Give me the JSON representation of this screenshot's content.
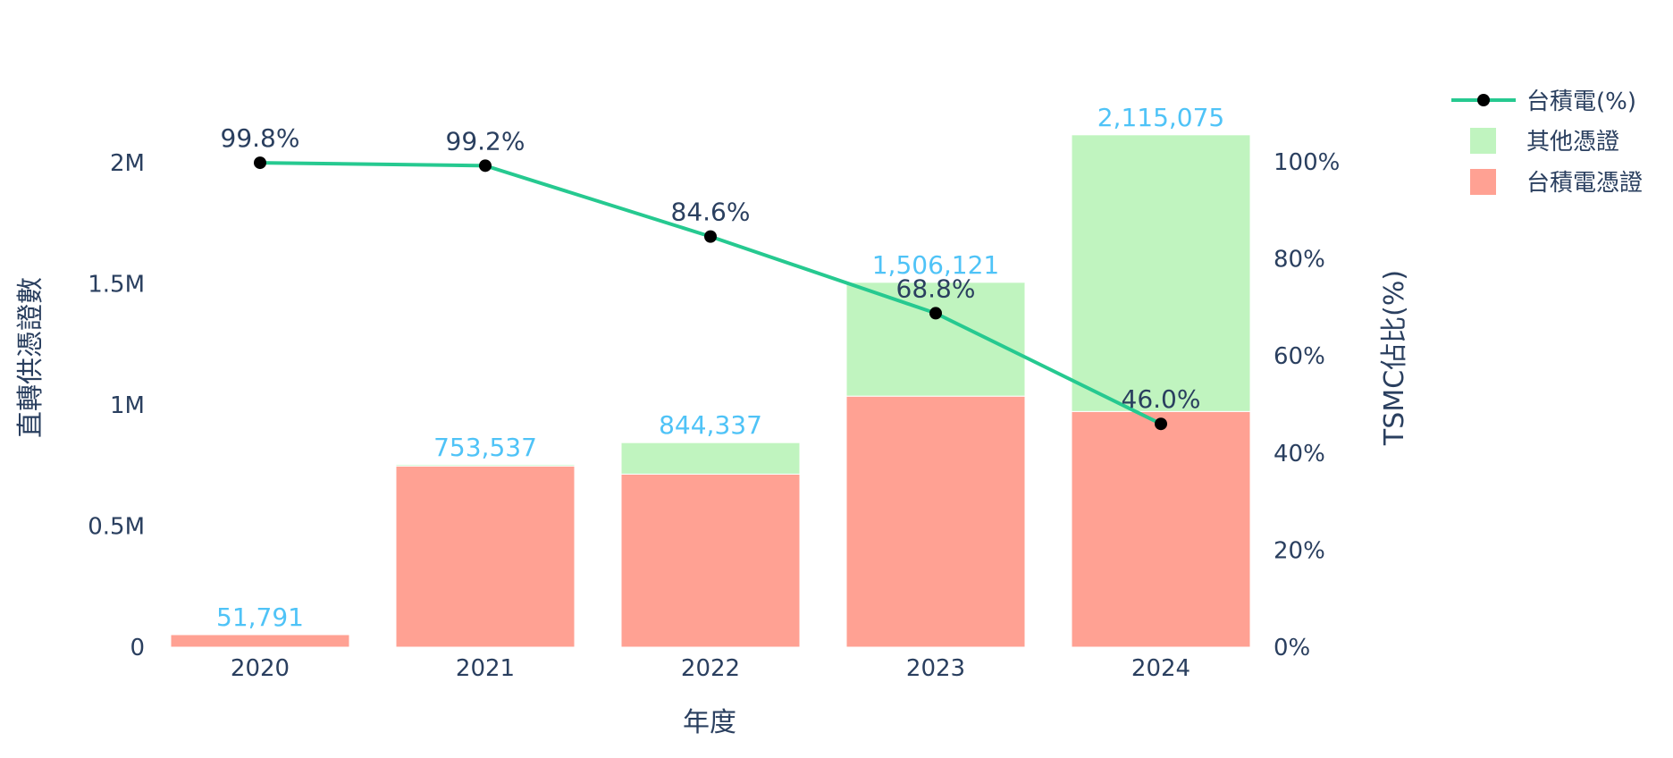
{
  "chart_data": {
    "type": "bar",
    "subtype": "stacked bar + line (dual axis)",
    "categories": [
      "2020",
      "2021",
      "2022",
      "2023",
      "2024"
    ],
    "xlabel": "年度",
    "ylabel": "直轉供憑證數",
    "y2label": "TSMC佔比(%)",
    "ylim": [
      0,
      2400000
    ],
    "y2lim": [
      0,
      100
    ],
    "y_ticks": [
      "0",
      "0.5M",
      "1M",
      "1.5M",
      "2M"
    ],
    "y_tick_values": [
      0,
      500000,
      1000000,
      1500000,
      2000000
    ],
    "y2_ticks": [
      "0%",
      "20%",
      "40%",
      "60%",
      "80%",
      "100%"
    ],
    "y2_tick_values": [
      0,
      20,
      40,
      60,
      80,
      100
    ],
    "grid": false,
    "legend_position": "top-right",
    "series": [
      {
        "name": "台積電憑證",
        "kind": "bar",
        "color": "#ffa193",
        "values": [
          51687,
          747509,
          714309,
          1036211,
          972935
        ]
      },
      {
        "name": "其他憑證",
        "kind": "bar",
        "color": "#c0f4bf",
        "values": [
          104,
          6028,
          130028,
          469910,
          1142140
        ]
      },
      {
        "name": "台積電(%)",
        "kind": "line",
        "axis": "y2",
        "color": "#26c990",
        "marker_color": "#000000",
        "values": [
          99.8,
          99.2,
          84.6,
          68.8,
          46.0
        ]
      }
    ],
    "totals": [
      51791,
      753537,
      844337,
      1506121,
      2115075
    ],
    "total_labels": [
      "51,791",
      "753,537",
      "844,337",
      "1,506,121",
      "2,115,075"
    ],
    "pct_labels": [
      "99.8%",
      "99.2%",
      "84.6%",
      "68.8%",
      "46.0%"
    ]
  },
  "legend": {
    "items": [
      {
        "label": "台積電(%)",
        "type": "line"
      },
      {
        "label": "其他憑證",
        "type": "box",
        "color": "#c0f4bf"
      },
      {
        "label": "台積電憑證",
        "type": "box",
        "color": "#ffa193"
      }
    ]
  }
}
